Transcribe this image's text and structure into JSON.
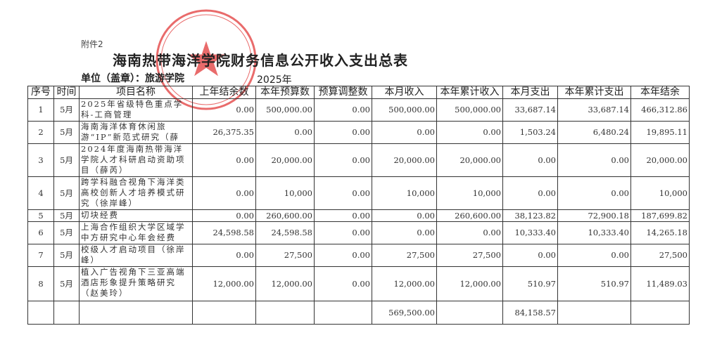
{
  "attachment_label": "附件2",
  "title": "海南热带海洋学院财务信息公开收入支出总表",
  "unit_label": "单位（盖章）：旅游学院",
  "year": "2025年",
  "stamp": {
    "text": "海南热带海洋学院旅游学院",
    "color": "#e23a3a"
  },
  "table": {
    "headers": [
      "序号",
      "时间",
      "项目名称",
      "上年结余数",
      "本年预算数",
      "预算调整数",
      "本月收入",
      "本年累计收入",
      "本月支出",
      "本年累计支出",
      "本年结余"
    ],
    "rows": [
      [
        "1",
        "5月",
        "2025年省级特色重点学科-工商管理",
        "0.00",
        "500,000.00",
        "0.00",
        "500,000.00",
        "500,000.00",
        "33,687.14",
        "33,687.14",
        "466,312.86"
      ],
      [
        "2",
        "5月",
        "海南海洋体育休闲旅游“IP”新范式研究（薛",
        "26,375.35",
        "0.00",
        "0.00",
        "0.00",
        "0.00",
        "1,503.24",
        "6,480.24",
        "19,895.11"
      ],
      [
        "3",
        "5月",
        "2024年度海南热带海洋学院人才科研启动资助项目（薛芮）",
        "0.00",
        "20,000.00",
        "0.00",
        "20,000.00",
        "20,000.00",
        "0.00",
        "0.00",
        "20,000.00"
      ],
      [
        "4",
        "5月",
        "跨学科融合视角下海洋类高校创新人才培养模式研究（徐岸峰）",
        "0.00",
        "10,000",
        "0.00",
        "10,000",
        "10,000",
        "0.00",
        "0.00",
        "10,000"
      ],
      [
        "5",
        "5月",
        "切块经费",
        "0.00",
        "260,600.00",
        "0.00",
        "0.00",
        "260,600.00",
        "38,123.82",
        "72,900.18",
        "187,699.82"
      ],
      [
        "6",
        "5月",
        "上海合作组织大学区域学中方研究中心年会经费",
        "24,598.58",
        "24,598.58",
        "0.00",
        "0.00",
        "0.00",
        "10,333.40",
        "10,333.40",
        "14,265.18"
      ],
      [
        "7",
        "5月",
        "校级人才启动项目（徐岸峰）",
        "0.00",
        "27,500",
        "0.00",
        "27,500",
        "27,500",
        "0.00",
        "0.00",
        "27,500"
      ],
      [
        "8",
        "5月",
        "植入广告视角下三亚高端酒店形象提升策略研究（赵美玲）",
        "12,000.00",
        "12,000.00",
        "0.00",
        "12,000.00",
        "12,000.00",
        "510.97",
        "510.97",
        "11,489.03"
      ]
    ],
    "total_row": [
      "",
      "",
      "",
      "",
      "",
      "",
      "569,500.00",
      "",
      "84,158.57",
      "",
      ""
    ]
  }
}
